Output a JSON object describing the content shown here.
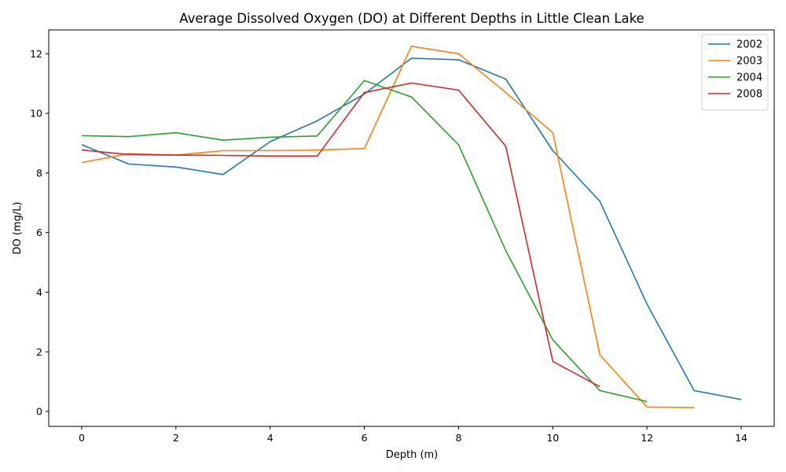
{
  "chart_data": {
    "type": "line",
    "title": "Average Dissolved Oxygen (DO) at Different Depths in Little Clean Lake",
    "xlabel": "Depth (m)",
    "ylabel": "DO (mg/L)",
    "xlim": [
      -0.7,
      14.7
    ],
    "ylim": [
      -0.5,
      12.8
    ],
    "xticks": [
      0,
      2,
      4,
      6,
      8,
      10,
      12,
      14
    ],
    "yticks": [
      0,
      2,
      4,
      6,
      8,
      10,
      12
    ],
    "grid": false,
    "legend_position": "top-right",
    "series": [
      {
        "name": "2002",
        "color": "#1f77b4",
        "x": [
          0,
          1,
          2,
          3,
          4,
          5,
          6,
          7,
          8,
          9,
          10,
          11,
          12,
          13,
          14
        ],
        "y": [
          8.95,
          8.3,
          8.2,
          7.95,
          9.05,
          9.75,
          10.65,
          11.85,
          11.8,
          11.15,
          8.75,
          7.05,
          3.6,
          0.7,
          0.4
        ]
      },
      {
        "name": "2003",
        "color": "#ff7f0e",
        "x": [
          0,
          1,
          2,
          3,
          4,
          5,
          6,
          7,
          8,
          9,
          10,
          11,
          12,
          13
        ],
        "y": [
          8.35,
          8.65,
          8.6,
          8.75,
          8.75,
          8.77,
          8.82,
          12.25,
          12.0,
          10.7,
          9.35,
          1.9,
          0.15,
          0.13
        ]
      },
      {
        "name": "2004",
        "color": "#2ca02c",
        "x": [
          0,
          1,
          2,
          3,
          4,
          5,
          6,
          7,
          8,
          9,
          10,
          11,
          12
        ],
        "y": [
          9.25,
          9.22,
          9.35,
          9.1,
          9.2,
          9.24,
          11.1,
          10.55,
          8.95,
          5.4,
          2.4,
          0.7,
          0.33
        ]
      },
      {
        "name": "2008",
        "color": "#d62728",
        "x": [
          0,
          1,
          2,
          3,
          4,
          5,
          6,
          7,
          8,
          9,
          10,
          11
        ],
        "y": [
          8.77,
          8.62,
          8.6,
          8.59,
          8.57,
          8.57,
          10.7,
          11.02,
          10.78,
          8.9,
          1.68,
          0.83
        ]
      }
    ]
  }
}
